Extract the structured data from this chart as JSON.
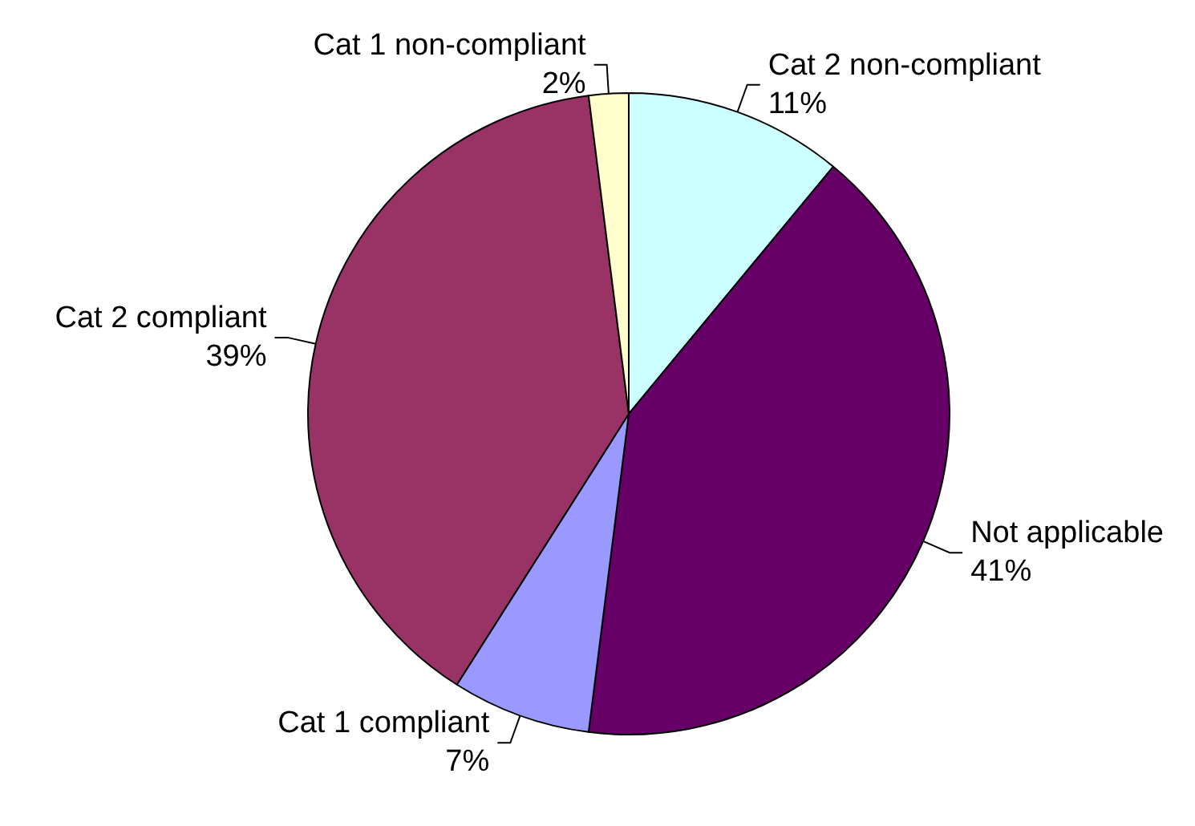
{
  "chart_data": {
    "type": "pie",
    "categories": [
      "Cat 2 non-compliant",
      "Not applicable",
      "Cat 1 compliant",
      "Cat 2 compliant",
      "Cat 1 non-compliant"
    ],
    "values": [
      11,
      41,
      7,
      39,
      2
    ],
    "value_labels": [
      "11%",
      "41%",
      "7%",
      "39%",
      "2%"
    ],
    "colors": [
      "#ccffff",
      "#660066",
      "#9999ff",
      "#993366",
      "#ffffcc"
    ],
    "legend": false
  }
}
